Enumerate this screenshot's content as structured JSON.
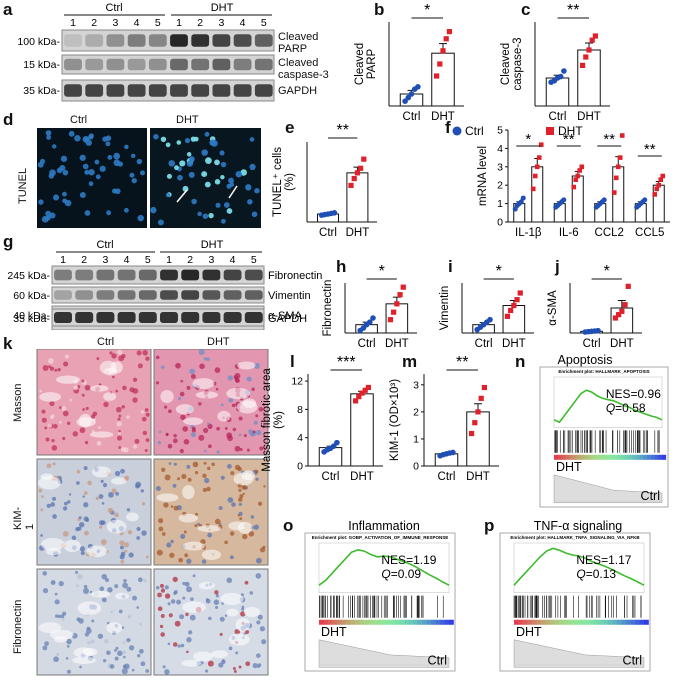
{
  "panel_letters": [
    "a",
    "b",
    "c",
    "d",
    "e",
    "f",
    "g",
    "h",
    "i",
    "j",
    "k",
    "l",
    "m",
    "n",
    "o",
    "p"
  ],
  "colors": {
    "ctrl": "#1f4fb4",
    "dht": "#e0202a",
    "gsea_line": "#3dbb2e"
  },
  "blot_a": {
    "groups": [
      "Ctrl",
      "DHT"
    ],
    "lanes": [
      "1",
      "2",
      "3",
      "4",
      "5",
      "1",
      "2",
      "3",
      "4",
      "5"
    ],
    "markers": [
      "100 kDa-",
      "15 kDa-",
      "35 kDa-"
    ],
    "proteins": [
      "Cleaved PARP",
      "Cleaved caspase-3",
      "GAPDH"
    ]
  },
  "blot_g": {
    "groups": [
      "Ctrl",
      "DHT"
    ],
    "lanes": [
      "1",
      "2",
      "3",
      "4",
      "5",
      "1",
      "2",
      "3",
      "4",
      "5"
    ],
    "markers": [
      "245 kDa-",
      "60 kDa-",
      "40 kDa-",
      "35 kDa-"
    ],
    "proteins": [
      "Fibronectin",
      "Vimentin",
      "α-SMA",
      "GAPDH"
    ]
  },
  "panel_d": {
    "row_label": "TUNEL",
    "cols": [
      "Ctrl",
      "DHT"
    ]
  },
  "panel_k": {
    "rows": [
      "Masson",
      "KIM-1",
      "Fibronectin"
    ],
    "cols": [
      "Ctrl",
      "DHT"
    ]
  },
  "chart_data": [
    {
      "panel": "b",
      "type": "bar",
      "categories": [
        "Ctrl",
        "DHT"
      ],
      "ylabel": "Cleaved PARP",
      "significance": "*",
      "series": [
        {
          "name": "Ctrl",
          "mean": 1.0,
          "sem": 0.3,
          "points": [
            0.4,
            0.7,
            1.0,
            1.4,
            1.6
          ]
        },
        {
          "name": "DHT",
          "mean": 4.4,
          "sem": 0.8,
          "points": [
            2.5,
            3.5,
            4.6,
            5.6,
            6.2
          ]
        }
      ],
      "ylim": [
        0,
        7
      ]
    },
    {
      "panel": "c",
      "type": "bar",
      "categories": [
        "Ctrl",
        "DHT"
      ],
      "ylabel": "Cleaved caspase-3",
      "significance": "**",
      "series": [
        {
          "name": "Ctrl",
          "mean": 1.0,
          "sem": 0.1,
          "points": [
            0.85,
            0.9,
            1.0,
            1.05,
            1.25
          ]
        },
        {
          "name": "DHT",
          "mean": 2.0,
          "sem": 0.25,
          "points": [
            1.45,
            1.75,
            2.0,
            2.35,
            2.5
          ]
        }
      ],
      "ylim": [
        0,
        3
      ]
    },
    {
      "panel": "e",
      "type": "bar",
      "categories": [
        "Ctrl",
        "DHT"
      ],
      "ylabel": "TUNEL+ cells (%)",
      "significance": "**",
      "series": [
        {
          "name": "Ctrl",
          "mean": 7,
          "sem": 0.5,
          "points": [
            6,
            6.5,
            7,
            7.5,
            8
          ]
        },
        {
          "name": "DHT",
          "mean": 43,
          "sem": 5,
          "points": [
            32,
            38,
            43,
            47,
            55
          ]
        }
      ],
      "ylim": [
        0,
        70
      ]
    },
    {
      "panel": "f",
      "type": "bar",
      "categories": [
        "IL-1β",
        "IL-6",
        "CCL2",
        "CCL5"
      ],
      "ylabel": "mRNA level",
      "significance": [
        "*",
        "**",
        "**",
        "**"
      ],
      "legend": [
        "Ctrl",
        "DHT"
      ],
      "series": [
        {
          "name": "Ctrl",
          "means": [
            1.0,
            1.0,
            1.0,
            1.0
          ],
          "sems": [
            0.1,
            0.1,
            0.1,
            0.1
          ],
          "points": [
            [
              0.7,
              0.9,
              1.0,
              1.1,
              1.3
            ],
            [
              0.8,
              0.9,
              1.0,
              1.1,
              1.2
            ],
            [
              0.8,
              0.9,
              1.0,
              1.1,
              1.2
            ],
            [
              0.8,
              0.9,
              1.0,
              1.1,
              1.2
            ]
          ]
        },
        {
          "name": "DHT",
          "means": [
            3.0,
            2.5,
            3.0,
            2.0
          ],
          "sems": [
            0.45,
            0.25,
            0.55,
            0.2
          ],
          "points": [
            [
              1.8,
              2.5,
              3.0,
              3.5,
              4.2
            ],
            [
              1.9,
              2.3,
              2.5,
              2.8,
              3.0
            ],
            [
              1.6,
              2.4,
              3.0,
              3.5,
              4.7
            ],
            [
              1.5,
              1.8,
              2.0,
              2.3,
              2.5
            ]
          ]
        }
      ],
      "yticks": [
        0,
        1,
        2,
        3,
        4,
        5
      ],
      "ylim": [
        0,
        5
      ]
    },
    {
      "panel": "h",
      "type": "bar",
      "categories": [
        "Ctrl",
        "DHT"
      ],
      "ylabel": "Fibronectin",
      "significance": "*",
      "series": [
        {
          "name": "Ctrl",
          "mean": 1.0,
          "sem": 0.3,
          "points": [
            0.3,
            0.6,
            1.0,
            1.3,
            1.8
          ]
        },
        {
          "name": "DHT",
          "mean": 3.5,
          "sem": 0.8,
          "points": [
            1.6,
            2.5,
            3.5,
            4.6,
            5.5
          ]
        }
      ],
      "ylim": [
        0,
        6
      ]
    },
    {
      "panel": "i",
      "type": "bar",
      "categories": [
        "Ctrl",
        "DHT"
      ],
      "ylabel": "Vimentin",
      "significance": "*",
      "series": [
        {
          "name": "Ctrl",
          "mean": 1.0,
          "sem": 0.25,
          "points": [
            0.4,
            0.7,
            1.0,
            1.3,
            1.6
          ]
        },
        {
          "name": "DHT",
          "mean": 3.3,
          "sem": 0.6,
          "points": [
            2.0,
            2.7,
            3.3,
            4.0,
            4.8
          ]
        }
      ],
      "ylim": [
        0,
        6
      ]
    },
    {
      "panel": "j",
      "type": "bar",
      "categories": [
        "Ctrl",
        "DHT"
      ],
      "ylabel": "α-SMA",
      "significance": "*",
      "series": [
        {
          "name": "Ctrl",
          "mean": 1.0,
          "sem": 0.2,
          "points": [
            0.6,
            0.8,
            1.0,
            1.2,
            1.4
          ]
        },
        {
          "name": "DHT",
          "mean": 15,
          "sem": 4.5,
          "points": [
            9,
            11,
            13,
            17,
            28
          ]
        }
      ],
      "ylim": [
        0,
        30
      ]
    },
    {
      "panel": "l",
      "type": "bar",
      "categories": [
        "Ctrl",
        "DHT"
      ],
      "ylabel": "Masson fibrotic area (%)",
      "significance": "***",
      "series": [
        {
          "name": "Ctrl",
          "mean": 2.6,
          "sem": 0.2,
          "points": [
            2.0,
            2.3,
            2.5,
            2.8,
            3.3
          ]
        },
        {
          "name": "DHT",
          "mean": 10.2,
          "sem": 0.35,
          "points": [
            9.2,
            9.8,
            10.3,
            10.7,
            11.1
          ]
        }
      ],
      "yticks": [
        0,
        4,
        8,
        12
      ],
      "ylim": [
        0,
        13
      ]
    },
    {
      "panel": "m",
      "type": "bar",
      "categories": [
        "Ctrl",
        "DHT"
      ],
      "ylabel": "KIM-1 (OD×10³)",
      "significance": "**",
      "series": [
        {
          "name": "Ctrl",
          "mean": 0.45,
          "sem": 0.03,
          "points": [
            0.38,
            0.42,
            0.45,
            0.48,
            0.5
          ]
        },
        {
          "name": "DHT",
          "mean": 2.0,
          "sem": 0.3,
          "points": [
            1.2,
            1.6,
            2.0,
            2.5,
            2.9
          ]
        }
      ],
      "yticks": [
        0,
        1,
        2,
        3
      ],
      "ylim": [
        0,
        3.4
      ]
    }
  ],
  "gsea": [
    {
      "panel": "n",
      "title": "Apoptosis",
      "plot_title": "Enrichment plot: HALLMARK_APOPTOSIS",
      "nes": "NES=0.96",
      "q": "=0.58",
      "top_label": "DHT",
      "bottom_label": "Ctrl"
    },
    {
      "panel": "o",
      "title": "Inflammation",
      "plot_title": "Enrichment plot: GOBP_ACTIVATION_OF_IMMUNE_RESPONSE",
      "nes": "NES=1.19",
      "q": "=0.09",
      "top_label": "DHT",
      "bottom_label": "Ctrl"
    },
    {
      "panel": "p",
      "title": "TNF-α signaling",
      "plot_title": "Enrichment plot: HALLMARK_TNFA_SIGNALING_VIA_NFKB",
      "nes": "NES=1.17",
      "q": "=0.13",
      "top_label": "DHT",
      "bottom_label": "Ctrl"
    }
  ]
}
